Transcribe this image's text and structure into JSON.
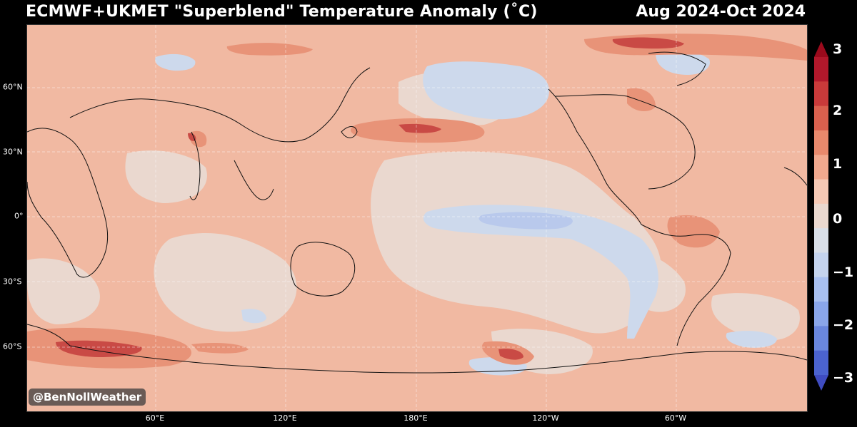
{
  "header": {
    "title": "ECMWF+UKMET \"Superblend\" Temperature Anomaly (˚C)",
    "period": "Aug 2024-Oct 2024"
  },
  "watermark": "@BenNollWeather",
  "axes": {
    "lat_labels": [
      "60°N",
      "30°N",
      "0°",
      "30°S",
      "60°S"
    ],
    "lon_labels": [
      "60°E",
      "120°E",
      "180°E",
      "120°W",
      "60°W"
    ]
  },
  "colorbar": {
    "labels": [
      "3",
      "2",
      "1",
      "0",
      "−1",
      "−2",
      "−3"
    ],
    "colors": [
      "#b2182b",
      "#c93a3a",
      "#d9604e",
      "#e8896c",
      "#f1a98e",
      "#f6c9b5",
      "#ead8cf",
      "#d9dfe8",
      "#c5d4ee",
      "#a9c0f0",
      "#8aa6ea",
      "#6a87de",
      "#4b63cf"
    ]
  }
}
